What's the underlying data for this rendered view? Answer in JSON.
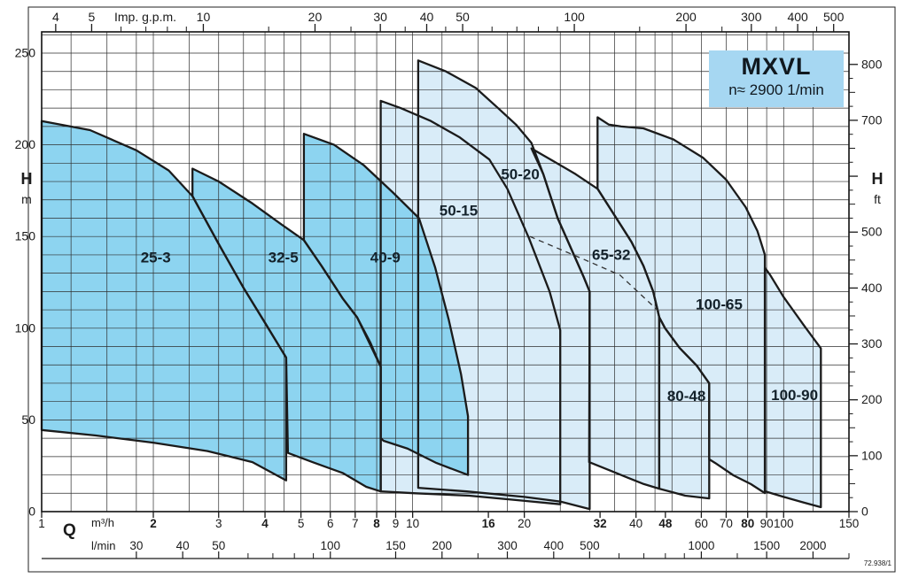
{
  "title": {
    "model": "MXVL",
    "speed": "n≈ 2900 1/min"
  },
  "footer": {
    "code": "72.938/1"
  },
  "labels": {
    "top_axis": "Imp. g.p.m.",
    "flow_symbol": "Q",
    "flow_unit_1": "m³/h",
    "flow_unit_2": "l/min",
    "head_symbol_left": "H",
    "head_unit_left": "m",
    "head_symbol_right": "H",
    "head_unit_right": "ft"
  },
  "chart_data": {
    "type": "area",
    "title": "MXVL",
    "subtitle": "n≈ 2900 1/min",
    "description": "Composite pump range chart: head H vs flow Q envelopes for MXVL vertical multistage pumps at n≈2900 1/min",
    "x_axis": {
      "label": "Q",
      "scale": "log",
      "unit": "m³/h",
      "min": 1,
      "max": 150
    },
    "x_axis_secondary": [
      {
        "unit": "l/min",
        "per_m3h": 16.667
      },
      {
        "unit": "Imp. g.p.m.",
        "per_m3h": 3.666
      }
    ],
    "y_axis": {
      "label": "H",
      "unit": "m",
      "min": 0,
      "max": 261,
      "grid_step": 10
    },
    "y2_axis": {
      "label": "H",
      "unit": "ft",
      "labeled_ticks": [
        0,
        100,
        200,
        300,
        400,
        500,
        700,
        800
      ],
      "minor_step": 25
    },
    "grid": "on",
    "x_grid_multipliers": [
      1,
      1.2,
      1.5,
      1.8,
      2,
      2.5,
      3,
      3.5,
      4,
      4.5,
      5,
      6,
      7,
      8,
      9
    ],
    "top_ticks_gpm": {
      "labeled": [
        4,
        5,
        10,
        20,
        30,
        40,
        50,
        100,
        200,
        300,
        400,
        500
      ],
      "minor": [
        6,
        7,
        8,
        9,
        15,
        25,
        35,
        45,
        60,
        70,
        80,
        90,
        150,
        250,
        350,
        450
      ]
    },
    "bottom_ticks_m3h": [
      {
        "v": 1
      },
      {
        "v": 2,
        "b": 1
      },
      {
        "v": 3
      },
      {
        "v": 4,
        "b": 1
      },
      {
        "v": 5
      },
      {
        "v": 6
      },
      {
        "v": 7
      },
      {
        "v": 8,
        "b": 1
      },
      {
        "v": 9
      },
      {
        "v": 10
      },
      {
        "v": 16,
        "b": 1
      },
      {
        "v": 20
      },
      {
        "v": 32,
        "b": 1
      },
      {
        "v": 40
      },
      {
        "v": 48,
        "b": 1
      },
      {
        "v": 60
      },
      {
        "v": 70
      },
      {
        "v": 80,
        "b": 1
      },
      {
        "v": 90
      },
      {
        "v": 100
      },
      {
        "v": 150
      }
    ],
    "bottom_ticks_lmin": {
      "labeled": [
        30,
        40,
        50,
        100,
        150,
        200,
        300,
        400,
        500,
        1000,
        1500,
        2000
      ],
      "minor": [
        60,
        70,
        80,
        90,
        250,
        600,
        700,
        800,
        900,
        1250,
        2500
      ]
    },
    "left_ticks_m": [
      0,
      50,
      100,
      150,
      200,
      250
    ],
    "colors": {
      "dark_fill": "#8dd4f0",
      "light_fill": "#d9ecf8",
      "outline": "#1b1b1b",
      "grid": "#2e2e2e",
      "title_box": "#a6d7f2",
      "text": "#14222b"
    },
    "dashed_line": [
      [
        20.7,
        150
      ],
      [
        28.6,
        138
      ],
      [
        36.2,
        129
      ],
      [
        46.2,
        109
      ]
    ],
    "envelopes": [
      {
        "name": "50-15",
        "group": "light",
        "label_at": [
          13.3,
          164
        ],
        "points": [
          [
            8.2,
            224
          ],
          [
            9.3,
            220
          ],
          [
            11.2,
            213
          ],
          [
            13.4,
            204
          ],
          [
            16.1,
            192
          ],
          [
            18,
            176
          ],
          [
            20.6,
            149
          ],
          [
            23.4,
            120
          ],
          [
            25,
            99
          ],
          [
            25,
            4
          ],
          [
            19.8,
            6
          ],
          [
            14.2,
            8.7
          ],
          [
            10.2,
            10
          ],
          [
            8.2,
            11
          ]
        ]
      },
      {
        "name": "50-20",
        "group": "light",
        "label_at": [
          19.5,
          184
        ],
        "points": [
          [
            10.35,
            246
          ],
          [
            12.3,
            240
          ],
          [
            14.8,
            231
          ],
          [
            17,
            220
          ],
          [
            19,
            211
          ],
          [
            20.9,
            201
          ],
          [
            22.5,
            184
          ],
          [
            24.6,
            160
          ],
          [
            28.9,
            128
          ],
          [
            30,
            120
          ],
          [
            30,
            1.4
          ],
          [
            25,
            5.5
          ],
          [
            20,
            8
          ],
          [
            14,
            11
          ],
          [
            10.35,
            13
          ]
        ]
      },
      {
        "name": "65-32",
        "group": "light",
        "label_at": [
          34.3,
          140
        ],
        "points": [
          [
            20.9,
            198
          ],
          [
            24,
            191
          ],
          [
            27.5,
            184
          ],
          [
            31.5,
            176
          ],
          [
            36.2,
            157
          ],
          [
            38.9,
            147
          ],
          [
            41.9,
            134
          ],
          [
            44.5,
            120
          ],
          [
            46.2,
            106
          ],
          [
            46.2,
            12.5
          ],
          [
            42,
            15
          ],
          [
            38,
            18.5
          ],
          [
            34,
            22.5
          ],
          [
            29.9,
            27
          ],
          [
            30,
            120
          ],
          [
            28.9,
            128
          ],
          [
            24.6,
            160
          ],
          [
            22.5,
            184
          ]
        ]
      },
      {
        "name": "100-65",
        "group": "light",
        "label_at": [
          67,
          113
        ],
        "points": [
          [
            31.5,
            215
          ],
          [
            33.8,
            211
          ],
          [
            36.5,
            210
          ],
          [
            41.9,
            209
          ],
          [
            50.4,
            203
          ],
          [
            60.6,
            193
          ],
          [
            70,
            181
          ],
          [
            79,
            166
          ],
          [
            85,
            153
          ],
          [
            89,
            140
          ],
          [
            89,
            10.1
          ],
          [
            81.6,
            15
          ],
          [
            73.2,
            19.8
          ],
          [
            65.4,
            26.5
          ],
          [
            63,
            28.5
          ],
          [
            63,
            70
          ],
          [
            58.3,
            79.6
          ],
          [
            52.4,
            89.3
          ],
          [
            47.9,
            100
          ],
          [
            46.2,
            106
          ],
          [
            44.5,
            120
          ],
          [
            41.9,
            134
          ],
          [
            38.9,
            147
          ],
          [
            36.2,
            157
          ],
          [
            31.5,
            176
          ]
        ]
      },
      {
        "name": "80-48",
        "group": "light",
        "label_at": [
          54.7,
          63
        ],
        "points": [
          [
            46.2,
            106
          ],
          [
            47.9,
            100
          ],
          [
            52.4,
            89.3
          ],
          [
            58.3,
            79.6
          ],
          [
            63,
            70
          ],
          [
            63,
            7.2
          ],
          [
            54.3,
            8.7
          ],
          [
            46.2,
            12.5
          ]
        ]
      },
      {
        "name": "100-90",
        "group": "light",
        "label_at": [
          107,
          63.5
        ],
        "points": [
          [
            89,
            133
          ],
          [
            92,
            129
          ],
          [
            100,
            117
          ],
          [
            113,
            102
          ],
          [
            126,
            89
          ],
          [
            126,
            2.4
          ],
          [
            113,
            5
          ],
          [
            100,
            8
          ],
          [
            89,
            11.1
          ]
        ]
      },
      {
        "name": "25-3",
        "group": "dark",
        "label_at": [
          2.03,
          138.5
        ],
        "points": [
          [
            1,
            213
          ],
          [
            1.35,
            208
          ],
          [
            1.8,
            197
          ],
          [
            2.2,
            186
          ],
          [
            2.55,
            172
          ],
          [
            3.0,
            146
          ],
          [
            3.5,
            122
          ],
          [
            4.0,
            103
          ],
          [
            4.56,
            84
          ],
          [
            4.56,
            17
          ],
          [
            3.7,
            27
          ],
          [
            2.8,
            33
          ],
          [
            2.0,
            37.6
          ],
          [
            1.4,
            41.5
          ],
          [
            1,
            44.5
          ]
        ]
      },
      {
        "name": "32-5",
        "group": "dark",
        "label_at": [
          4.48,
          138.5
        ],
        "points": [
          [
            2.55,
            172
          ],
          [
            2.55,
            187
          ],
          [
            3.0,
            180
          ],
          [
            3.7,
            168
          ],
          [
            4.4,
            157
          ],
          [
            5.09,
            148
          ],
          [
            5.68,
            134
          ],
          [
            6.49,
            116
          ],
          [
            7.08,
            106
          ],
          [
            7.7,
            92
          ],
          [
            8.2,
            79
          ],
          [
            8.2,
            11
          ],
          [
            7.5,
            13.5
          ],
          [
            6.49,
            21
          ],
          [
            5.37,
            27
          ],
          [
            4.61,
            32
          ],
          [
            4.56,
            84
          ],
          [
            4.0,
            103
          ],
          [
            3.5,
            122
          ],
          [
            3.0,
            146
          ]
        ]
      },
      {
        "name": "40-9",
        "group": "dark",
        "label_at": [
          8.44,
          138.5
        ],
        "points": [
          [
            5.09,
            148
          ],
          [
            5.09,
            206
          ],
          [
            6.14,
            200
          ],
          [
            7.37,
            189
          ],
          [
            8.85,
            174
          ],
          [
            10.4,
            160
          ],
          [
            11.5,
            133
          ],
          [
            12.5,
            105
          ],
          [
            13.5,
            75
          ],
          [
            14.1,
            52
          ],
          [
            14.1,
            20
          ],
          [
            11.6,
            26.5
          ],
          [
            9.7,
            34.3
          ],
          [
            8.35,
            38.6
          ],
          [
            8.2,
            40
          ],
          [
            8.2,
            79
          ],
          [
            7.08,
            106
          ],
          [
            6.49,
            116
          ],
          [
            5.68,
            134
          ]
        ]
      }
    ]
  }
}
